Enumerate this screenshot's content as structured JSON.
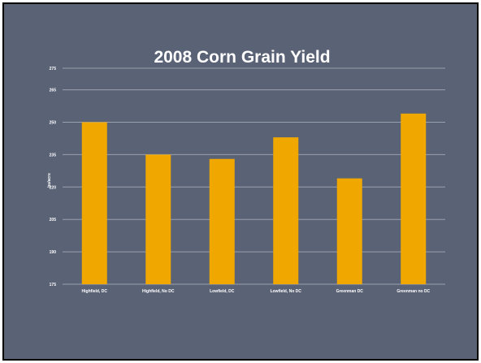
{
  "chart_data": {
    "type": "bar",
    "title": "2008 Corn Grain Yield",
    "ylabel": "bu/acre",
    "xlabel": "",
    "ylim": [
      175,
      275
    ],
    "yticks": [
      175,
      190,
      205,
      220,
      235,
      250,
      265,
      275
    ],
    "ytick_labels": [
      "175",
      "190",
      "205",
      "220",
      "235",
      "250",
      "265",
      "275"
    ],
    "categories": [
      "Highfield, DC",
      "Highfield, No DC",
      "Lowfield, DC",
      "Lowfield, No DC",
      "Greenman DC",
      "Greenman no DC"
    ],
    "values": [
      250,
      235,
      233,
      243,
      224,
      254
    ],
    "grid": true,
    "colors": {
      "bar": "#f0a800",
      "background": "#5a6275",
      "grid": "#9aa0ad",
      "text": "#ffffff"
    }
  }
}
